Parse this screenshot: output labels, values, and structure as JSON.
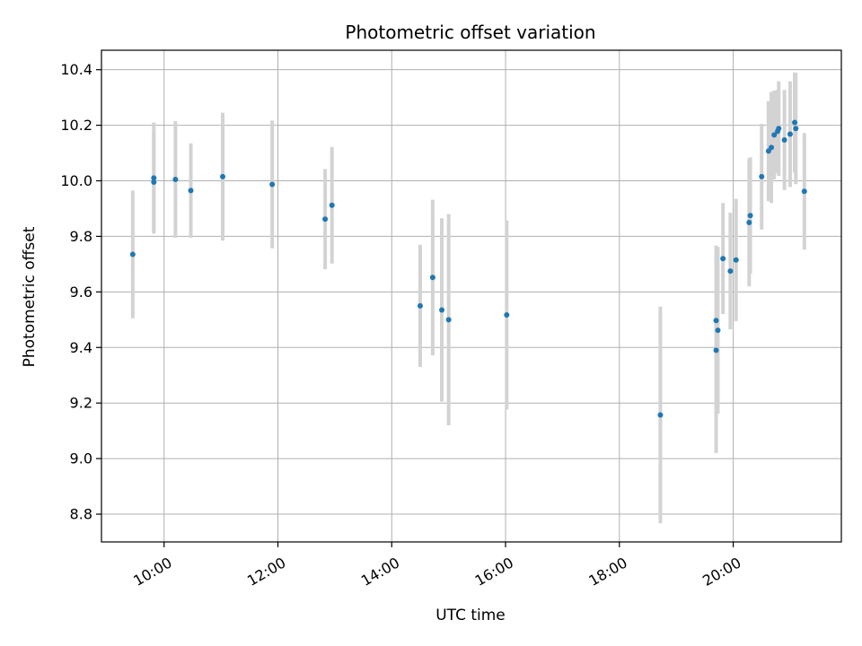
{
  "chart_data": {
    "type": "scatter",
    "title": "Photometric offset variation",
    "xlabel": "UTC time",
    "ylabel": "Photometric offset",
    "x_unit": "hours UTC",
    "xlim": [
      8.9,
      21.9
    ],
    "ylim": [
      8.7,
      10.47
    ],
    "x_ticks": [
      10,
      12,
      14,
      16,
      18,
      20
    ],
    "x_tick_labels": [
      "10:00",
      "12:00",
      "14:00",
      "16:00",
      "18:00",
      "20:00"
    ],
    "y_ticks": [
      8.8,
      9.0,
      9.2,
      9.4,
      9.6,
      9.8,
      10.0,
      10.2,
      10.4
    ],
    "y_tick_labels": [
      "8.8",
      "9.0",
      "9.2",
      "9.4",
      "9.6",
      "9.8",
      "10.0",
      "10.2",
      "10.4"
    ],
    "grid": true,
    "marker_color": "#1f77b4",
    "errorbar_color": "#d3d3d3",
    "points": [
      {
        "x": 9.45,
        "y": 9.735,
        "err": 0.23
      },
      {
        "x": 9.82,
        "y": 9.995,
        "err": 0.18
      },
      {
        "x": 9.82,
        "y": 10.01,
        "err": 0.2
      },
      {
        "x": 10.2,
        "y": 10.005,
        "err": 0.21
      },
      {
        "x": 10.47,
        "y": 9.965,
        "err": 0.17
      },
      {
        "x": 11.03,
        "y": 10.015,
        "err": 0.23
      },
      {
        "x": 11.9,
        "y": 9.987,
        "err": 0.23
      },
      {
        "x": 12.83,
        "y": 9.862,
        "err": 0.18
      },
      {
        "x": 12.95,
        "y": 9.912,
        "err": 0.21
      },
      {
        "x": 14.5,
        "y": 9.55,
        "err": 0.22
      },
      {
        "x": 14.72,
        "y": 9.652,
        "err": 0.28
      },
      {
        "x": 14.88,
        "y": 9.535,
        "err": 0.33
      },
      {
        "x": 15.0,
        "y": 9.5,
        "err": 0.38
      },
      {
        "x": 16.02,
        "y": 9.517,
        "err": 0.34
      },
      {
        "x": 18.72,
        "y": 9.157,
        "err": 0.39
      },
      {
        "x": 19.7,
        "y": 9.497,
        "err": 0.27
      },
      {
        "x": 19.7,
        "y": 9.39,
        "err": 0.37
      },
      {
        "x": 19.73,
        "y": 9.462,
        "err": 0.3
      },
      {
        "x": 19.82,
        "y": 9.72,
        "err": 0.2
      },
      {
        "x": 19.95,
        "y": 9.675,
        "err": 0.21
      },
      {
        "x": 20.05,
        "y": 9.715,
        "err": 0.22
      },
      {
        "x": 20.28,
        "y": 9.85,
        "err": 0.23
      },
      {
        "x": 20.3,
        "y": 9.875,
        "err": 0.21
      },
      {
        "x": 20.5,
        "y": 10.015,
        "err": 0.19
      },
      {
        "x": 20.62,
        "y": 10.107,
        "err": 0.18
      },
      {
        "x": 20.67,
        "y": 10.12,
        "err": 0.2
      },
      {
        "x": 20.72,
        "y": 10.165,
        "err": 0.16
      },
      {
        "x": 20.78,
        "y": 10.178,
        "err": 0.15
      },
      {
        "x": 20.8,
        "y": 10.188,
        "err": 0.17
      },
      {
        "x": 20.9,
        "y": 10.147,
        "err": 0.18
      },
      {
        "x": 21.0,
        "y": 10.168,
        "err": 0.19
      },
      {
        "x": 21.08,
        "y": 10.21,
        "err": 0.18
      },
      {
        "x": 21.1,
        "y": 10.188,
        "err": 0.2
      },
      {
        "x": 21.25,
        "y": 9.962,
        "err": 0.21
      }
    ]
  }
}
